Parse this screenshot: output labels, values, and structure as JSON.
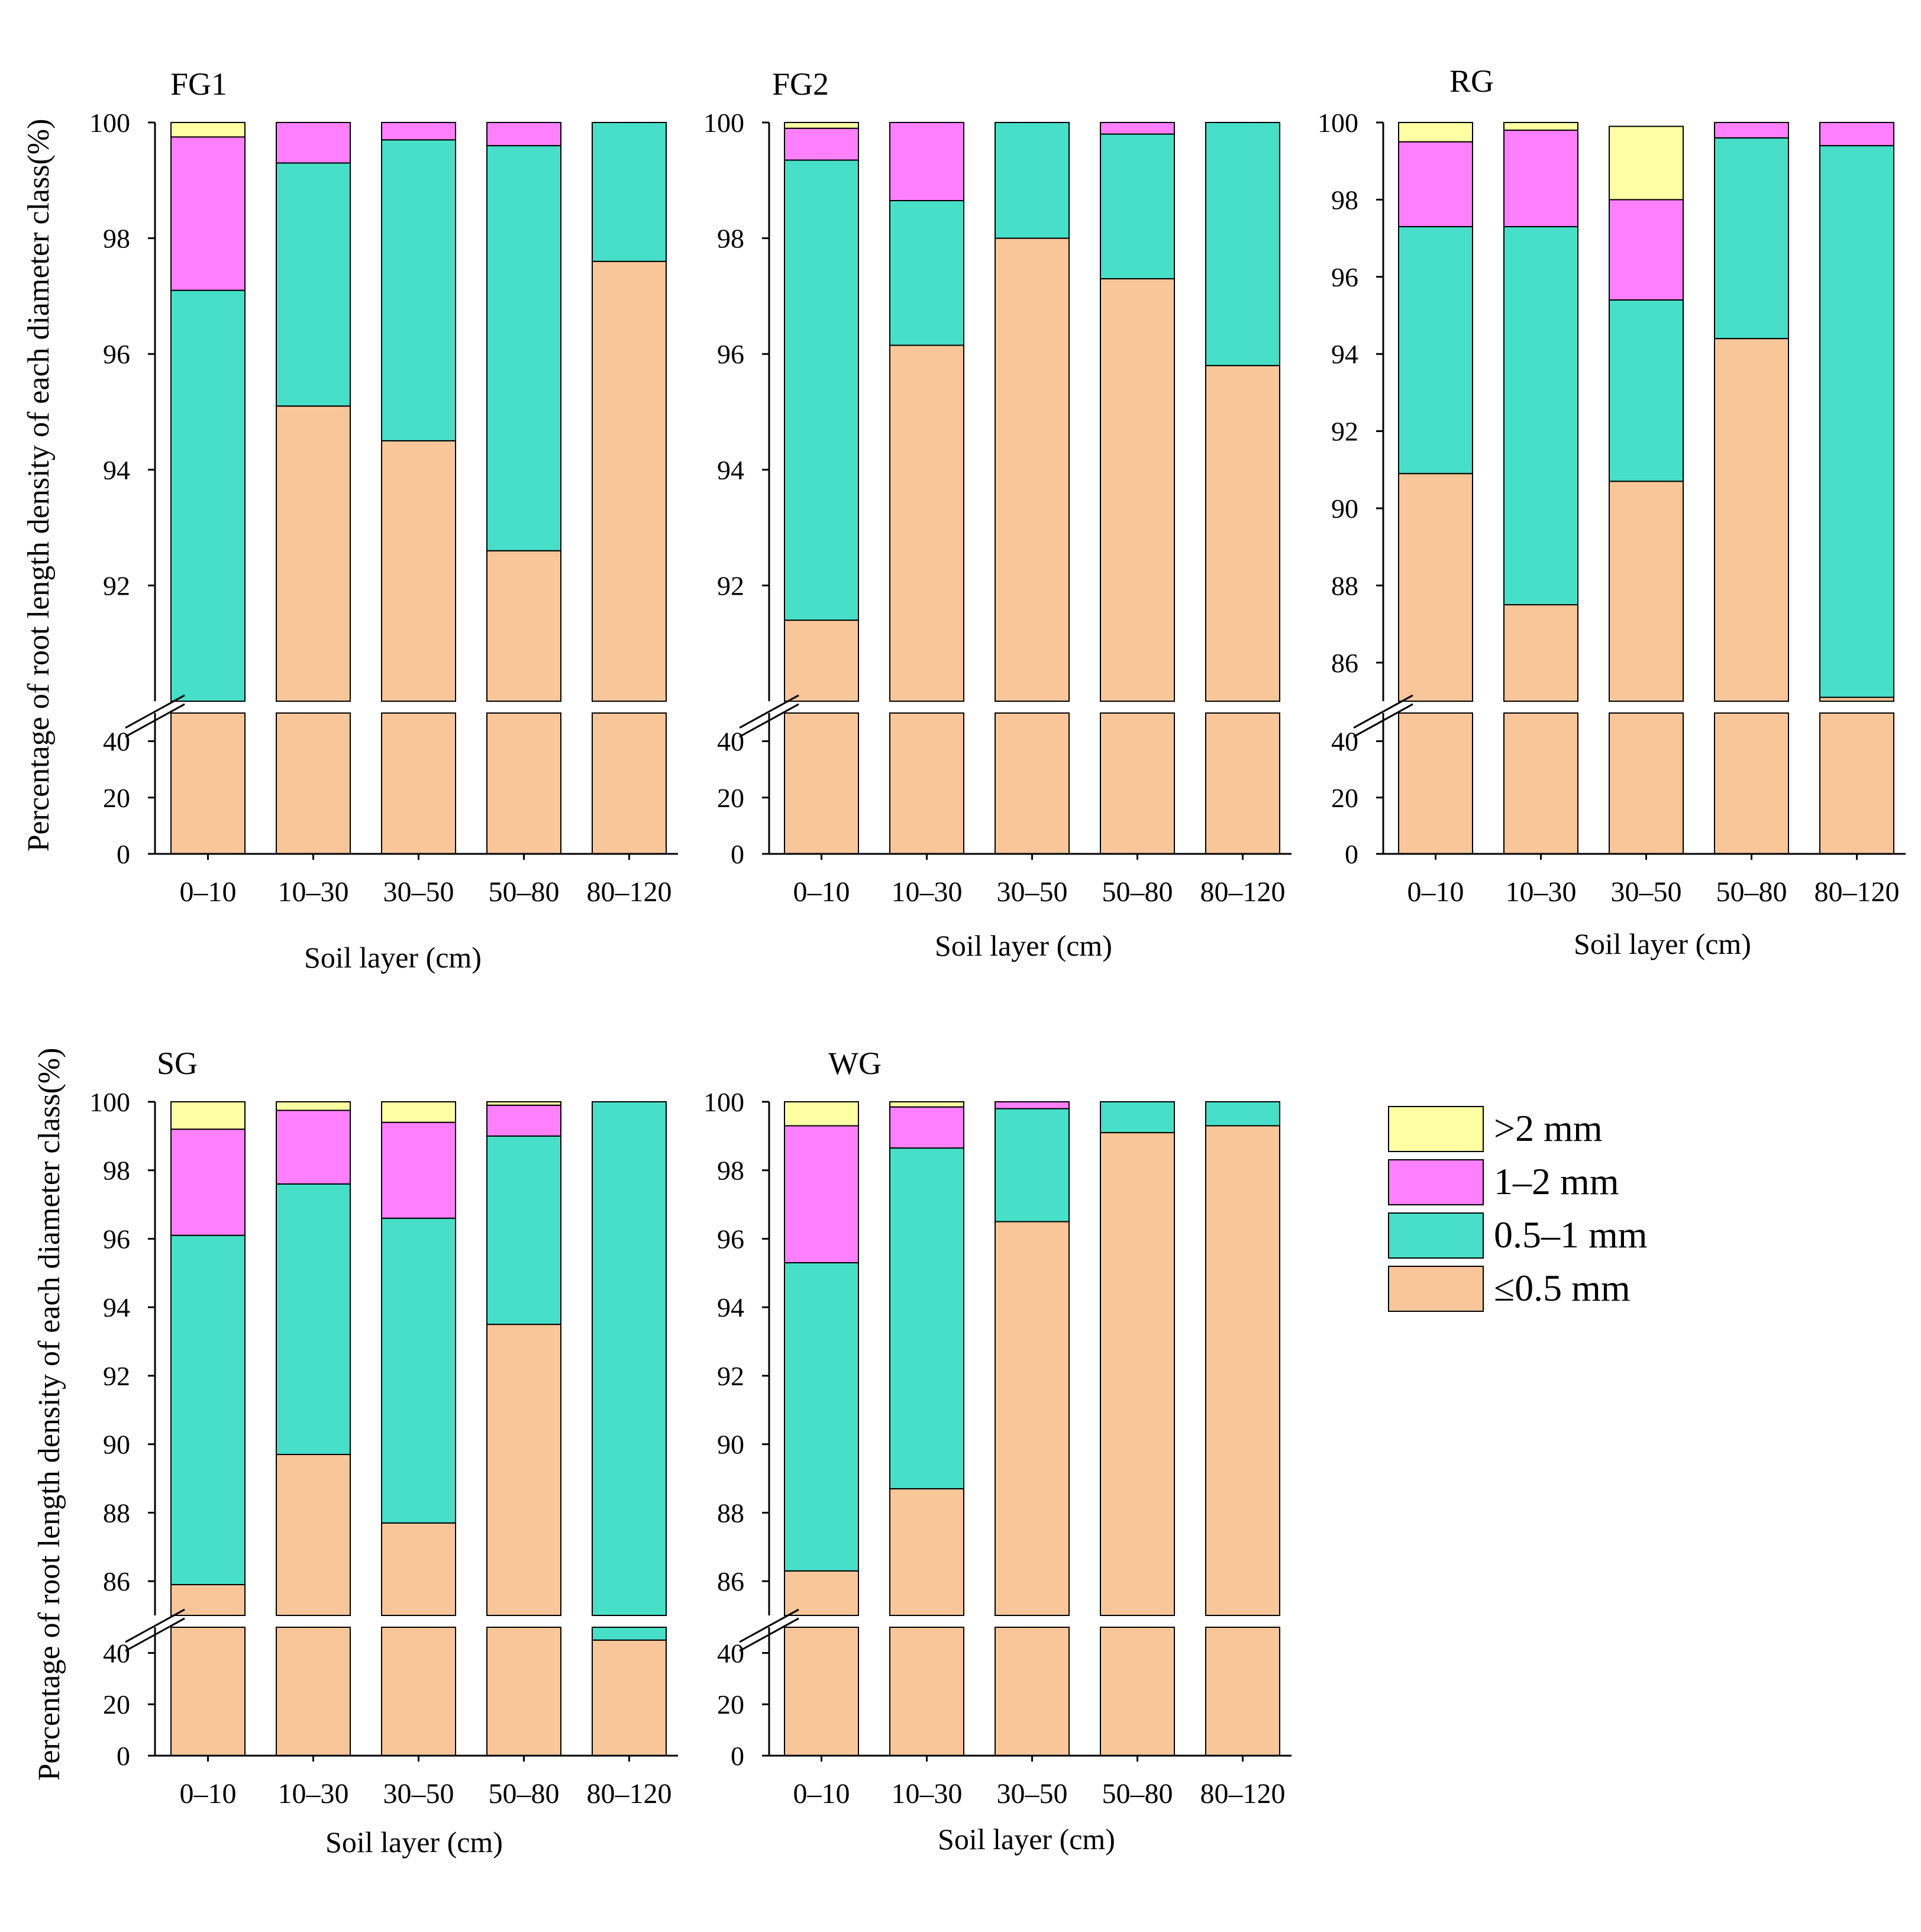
{
  "figure": {
    "ylabel": "Percentage of root length density of each diameter class(%)",
    "xlabel": "Soil layer (cm)",
    "lower_ticks": [
      0,
      20,
      40
    ],
    "legend": [
      {
        "label": ">2 mm",
        "color": "#FFFFA3"
      },
      {
        "label": "1–2 mm",
        "color": "#FF80FF"
      },
      {
        "label": "0.5–1 mm",
        "color": "#48DFC9"
      },
      {
        "label": "≤0.5 mm",
        "color": "#F9C69A"
      }
    ]
  },
  "chart_data": [
    {
      "type": "bar",
      "stacked": true,
      "title": "FG1",
      "categories": [
        "0–10",
        "10–30",
        "30–50",
        "50–80",
        "80–120"
      ],
      "xlabel": "Soil layer (cm)",
      "ylabel": "Percentage of root length density of each diameter class(%)",
      "ylim_upper": [
        90,
        100
      ],
      "ylim_lower": [
        0,
        50
      ],
      "yticks_upper": [
        92,
        94,
        96,
        98,
        100
      ],
      "series": [
        {
          "name": "≤0.5 mm",
          "values": [
            86.5,
            95.1,
            94.5,
            92.6,
            97.6
          ]
        },
        {
          "name": "0.5–1 mm",
          "values": [
            10.6,
            4.2,
            5.2,
            7.0,
            2.4
          ]
        },
        {
          "name": "1–2 mm",
          "values": [
            2.65,
            0.7,
            0.35,
            0.45,
            0.0
          ]
        },
        {
          "name": ">2 mm",
          "values": [
            0.25,
            0.0,
            0.0,
            0.0,
            0.0
          ]
        }
      ]
    },
    {
      "type": "bar",
      "stacked": true,
      "title": "FG2",
      "categories": [
        "0–10",
        "10–30",
        "30–50",
        "50–80",
        "80–120"
      ],
      "xlabel": "Soil layer (cm)",
      "ylabel": "Percentage of root length density of each diameter class(%)",
      "ylim_upper": [
        90,
        100
      ],
      "ylim_lower": [
        0,
        50
      ],
      "yticks_upper": [
        92,
        94,
        96,
        98,
        100
      ],
      "series": [
        {
          "name": "≤0.5 mm",
          "values": [
            91.4,
            96.15,
            98.0,
            97.3,
            95.8
          ]
        },
        {
          "name": "0.5–1 mm",
          "values": [
            7.95,
            2.5,
            2.0,
            2.5,
            4.2
          ]
        },
        {
          "name": "1–2 mm",
          "values": [
            0.55,
            1.35,
            0.0,
            0.2,
            0.0
          ]
        },
        {
          "name": ">2 mm",
          "values": [
            0.1,
            0.0,
            0.0,
            0.0,
            0.0
          ]
        }
      ]
    },
    {
      "type": "bar",
      "stacked": true,
      "title": "RG",
      "categories": [
        "0–10",
        "10–30",
        "30–50",
        "50–80",
        "80–120"
      ],
      "xlabel": "Soil layer (cm)",
      "ylabel": "Percentage of root length density of each diameter class(%)",
      "ylim_upper": [
        85,
        100
      ],
      "ylim_lower": [
        0,
        50
      ],
      "yticks_upper": [
        86,
        88,
        90,
        92,
        94,
        96,
        98,
        100
      ],
      "series": [
        {
          "name": "≤0.5 mm",
          "values": [
            90.9,
            87.5,
            90.7,
            94.4,
            85.1
          ]
        },
        {
          "name": "0.5–1 mm",
          "values": [
            6.4,
            9.8,
            4.7,
            5.2,
            14.3
          ]
        },
        {
          "name": "1–2 mm",
          "values": [
            2.2,
            2.5,
            2.6,
            0.4,
            0.6
          ]
        },
        {
          "name": ">2 mm",
          "values": [
            0.5,
            0.2,
            1.9,
            0.0,
            0.0
          ]
        }
      ]
    },
    {
      "type": "bar",
      "stacked": true,
      "title": "SG",
      "categories": [
        "0–10",
        "10–30",
        "30–50",
        "50–80",
        "80–120"
      ],
      "xlabel": "Soil layer (cm)",
      "ylabel": "Percentage of root length density of each diameter class(%)",
      "ylim_upper": [
        85,
        100
      ],
      "ylim_lower": [
        0,
        50
      ],
      "yticks_upper": [
        86,
        88,
        90,
        92,
        94,
        96,
        98,
        100
      ],
      "series": [
        {
          "name": "≤0.5 mm",
          "values": [
            85.9,
            89.7,
            87.7,
            93.5,
            45.0
          ]
        },
        {
          "name": "0.5–1 mm",
          "values": [
            10.2,
            7.9,
            8.9,
            5.5,
            55.0
          ]
        },
        {
          "name": "1–2 mm",
          "values": [
            3.1,
            2.15,
            2.8,
            0.9,
            0.0
          ]
        },
        {
          "name": ">2 mm",
          "values": [
            0.8,
            0.25,
            0.6,
            0.1,
            0.0
          ]
        }
      ]
    },
    {
      "type": "bar",
      "stacked": true,
      "title": "WG",
      "categories": [
        "0–10",
        "10–30",
        "30–50",
        "50–80",
        "80–120"
      ],
      "xlabel": "Soil layer (cm)",
      "ylabel": "Percentage of root length density of each diameter class(%)",
      "ylim_upper": [
        85,
        100
      ],
      "ylim_lower": [
        0,
        50
      ],
      "yticks_upper": [
        86,
        88,
        90,
        92,
        94,
        96,
        98,
        100
      ],
      "series": [
        {
          "name": "≤0.5 mm",
          "values": [
            86.3,
            88.7,
            96.5,
            99.1,
            99.3
          ]
        },
        {
          "name": "0.5–1 mm",
          "values": [
            9.0,
            9.95,
            3.3,
            0.9,
            0.7
          ]
        },
        {
          "name": "1–2 mm",
          "values": [
            4.0,
            1.2,
            0.2,
            0.0,
            0.0
          ]
        },
        {
          "name": ">2 mm",
          "values": [
            0.7,
            0.15,
            0.0,
            0.0,
            0.0
          ]
        }
      ]
    }
  ]
}
